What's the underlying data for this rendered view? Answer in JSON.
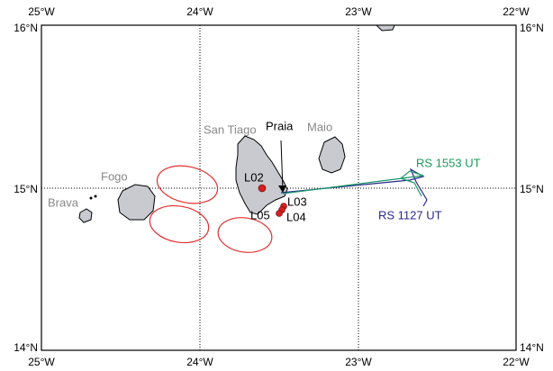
{
  "map": {
    "lon_labels": [
      "25°W",
      "24°W",
      "23°W",
      "22°W"
    ],
    "lat_labels": [
      "16°N",
      "15°N",
      "14°N"
    ],
    "places": [
      "San Tiago",
      "Maio",
      "Fogo",
      "Brava",
      "Praia"
    ],
    "stations": [
      "L02",
      "L03",
      "L04",
      "L05"
    ],
    "tracks": [
      "RS 1553 UT",
      "RS 1127 UT"
    ]
  }
}
